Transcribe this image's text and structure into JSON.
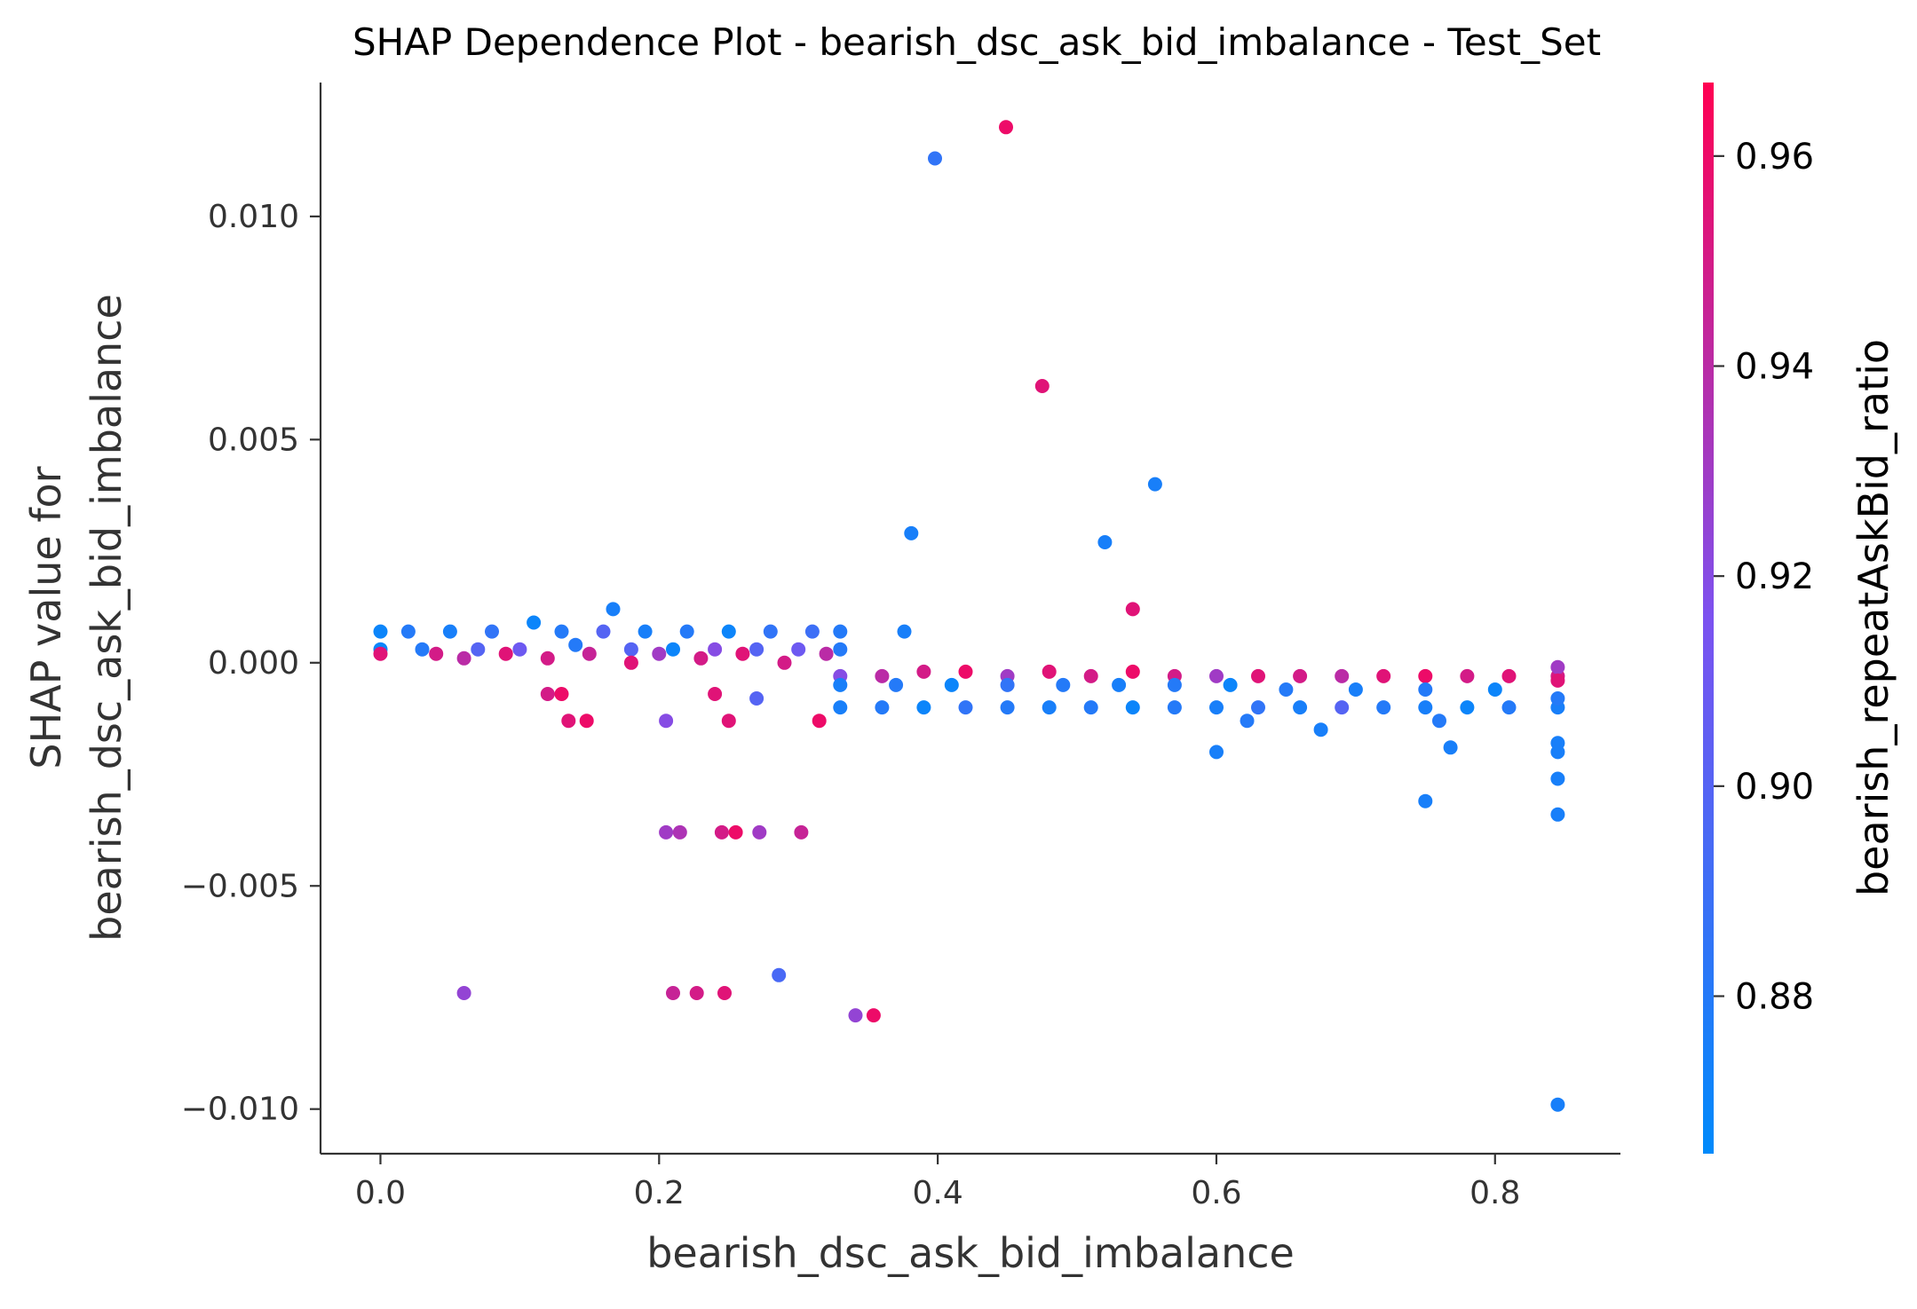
{
  "chart_data": {
    "type": "scatter",
    "title": "SHAP Dependence Plot - bearish_dsc_ask_bid_imbalance - Test_Set",
    "xlabel": "bearish_dsc_ask_bid_imbalance",
    "ylabel": "SHAP value for",
    "ylabel2": "bearish_dsc_ask_bid_imbalance",
    "colorbar_label": "bearish_repeatAskBid_ratio",
    "xlim": [
      -0.043,
      0.89
    ],
    "ylim": [
      -0.011,
      0.013
    ],
    "x_ticks": [
      0.0,
      0.2,
      0.4,
      0.6,
      0.8
    ],
    "x_tick_labels": [
      "0.0",
      "0.2",
      "0.4",
      "0.6",
      "0.8"
    ],
    "y_ticks": [
      0.01,
      0.005,
      0.0,
      -0.005,
      -0.01
    ],
    "y_tick_labels": [
      "0.010",
      "0.005",
      "0.000",
      "−0.005",
      "−0.010"
    ],
    "colorbar_range": [
      0.865,
      0.967
    ],
    "colorbar_ticks": [
      0.96,
      0.94,
      0.92,
      0.9,
      0.88
    ],
    "colorbar_tick_labels": [
      "0.96",
      "0.94",
      "0.92",
      "0.90",
      "0.88"
    ],
    "colormap": {
      "low": "#008afb",
      "mid": "#7c52f0",
      "high": "#ff0052"
    },
    "grid": false,
    "point_color": "by colorbar value",
    "points": [
      [
        0.0,
        0.0007,
        0.87
      ],
      [
        0.02,
        0.0007,
        0.88
      ],
      [
        0.05,
        0.0007,
        0.875
      ],
      [
        0.08,
        0.0007,
        0.885
      ],
      [
        0.11,
        0.0009,
        0.87
      ],
      [
        0.13,
        0.0007,
        0.88
      ],
      [
        0.16,
        0.0007,
        0.9
      ],
      [
        0.19,
        0.0007,
        0.875
      ],
      [
        0.22,
        0.0007,
        0.88
      ],
      [
        0.25,
        0.0007,
        0.87
      ],
      [
        0.28,
        0.0007,
        0.885
      ],
      [
        0.31,
        0.0007,
        0.89
      ],
      [
        0.33,
        0.0007,
        0.88
      ],
      [
        0.167,
        0.0012,
        0.875
      ],
      [
        0.0,
        0.0003,
        0.87
      ],
      [
        0.03,
        0.0003,
        0.88
      ],
      [
        0.07,
        0.0003,
        0.9
      ],
      [
        0.1,
        0.0003,
        0.91
      ],
      [
        0.14,
        0.0004,
        0.88
      ],
      [
        0.18,
        0.0003,
        0.9
      ],
      [
        0.21,
        0.0003,
        0.87
      ],
      [
        0.24,
        0.0003,
        0.92
      ],
      [
        0.27,
        0.0003,
        0.9
      ],
      [
        0.3,
        0.0003,
        0.91
      ],
      [
        0.33,
        0.0003,
        0.88
      ],
      [
        0.0,
        0.0002,
        0.955
      ],
      [
        0.04,
        0.0002,
        0.95
      ],
      [
        0.06,
        0.0001,
        0.94
      ],
      [
        0.09,
        0.0002,
        0.955
      ],
      [
        0.12,
        0.0001,
        0.95
      ],
      [
        0.15,
        0.0002,
        0.945
      ],
      [
        0.18,
        0.0,
        0.955
      ],
      [
        0.2,
        0.0002,
        0.93
      ],
      [
        0.23,
        0.0001,
        0.95
      ],
      [
        0.26,
        0.0002,
        0.955
      ],
      [
        0.29,
        0.0,
        0.95
      ],
      [
        0.32,
        0.0002,
        0.94
      ],
      [
        0.12,
        -0.0007,
        0.95
      ],
      [
        0.13,
        -0.0007,
        0.96
      ],
      [
        0.135,
        -0.0013,
        0.955
      ],
      [
        0.148,
        -0.0013,
        0.96
      ],
      [
        0.205,
        -0.0013,
        0.92
      ],
      [
        0.24,
        -0.0007,
        0.955
      ],
      [
        0.25,
        -0.0013,
        0.955
      ],
      [
        0.27,
        -0.0008,
        0.9
      ],
      [
        0.315,
        -0.0013,
        0.96
      ],
      [
        0.205,
        -0.0038,
        0.93
      ],
      [
        0.215,
        -0.0038,
        0.935
      ],
      [
        0.245,
        -0.0038,
        0.95
      ],
      [
        0.255,
        -0.0038,
        0.96
      ],
      [
        0.272,
        -0.0038,
        0.93
      ],
      [
        0.302,
        -0.0038,
        0.945
      ],
      [
        0.06,
        -0.0074,
        0.925
      ],
      [
        0.21,
        -0.0074,
        0.945
      ],
      [
        0.227,
        -0.0074,
        0.95
      ],
      [
        0.247,
        -0.0074,
        0.955
      ],
      [
        0.286,
        -0.007,
        0.895
      ],
      [
        0.341,
        -0.0079,
        0.925
      ],
      [
        0.354,
        -0.0079,
        0.96
      ],
      [
        0.398,
        0.0113,
        0.885
      ],
      [
        0.449,
        0.012,
        0.96
      ],
      [
        0.475,
        0.0062,
        0.955
      ],
      [
        0.556,
        0.004,
        0.875
      ],
      [
        0.381,
        0.0029,
        0.875
      ],
      [
        0.52,
        0.0027,
        0.875
      ],
      [
        0.54,
        0.0012,
        0.955
      ],
      [
        0.376,
        0.0007,
        0.875
      ],
      [
        0.33,
        -0.0003,
        0.92
      ],
      [
        0.36,
        -0.0003,
        0.94
      ],
      [
        0.39,
        -0.0002,
        0.95
      ],
      [
        0.42,
        -0.0002,
        0.96
      ],
      [
        0.45,
        -0.0003,
        0.93
      ],
      [
        0.48,
        -0.0002,
        0.955
      ],
      [
        0.51,
        -0.0003,
        0.95
      ],
      [
        0.54,
        -0.0002,
        0.96
      ],
      [
        0.57,
        -0.0003,
        0.95
      ],
      [
        0.6,
        -0.0003,
        0.93
      ],
      [
        0.63,
        -0.0003,
        0.955
      ],
      [
        0.66,
        -0.0003,
        0.95
      ],
      [
        0.69,
        -0.0003,
        0.94
      ],
      [
        0.72,
        -0.0003,
        0.955
      ],
      [
        0.75,
        -0.0003,
        0.96
      ],
      [
        0.78,
        -0.0003,
        0.95
      ],
      [
        0.81,
        -0.0003,
        0.955
      ],
      [
        0.845,
        -0.0003,
        0.95
      ],
      [
        0.33,
        -0.0005,
        0.875
      ],
      [
        0.37,
        -0.0005,
        0.88
      ],
      [
        0.41,
        -0.0005,
        0.87
      ],
      [
        0.45,
        -0.0005,
        0.885
      ],
      [
        0.49,
        -0.0005,
        0.88
      ],
      [
        0.53,
        -0.0005,
        0.875
      ],
      [
        0.57,
        -0.0005,
        0.88
      ],
      [
        0.61,
        -0.0005,
        0.87
      ],
      [
        0.65,
        -0.0006,
        0.88
      ],
      [
        0.7,
        -0.0006,
        0.875
      ],
      [
        0.75,
        -0.0006,
        0.88
      ],
      [
        0.8,
        -0.0006,
        0.87
      ],
      [
        0.33,
        -0.001,
        0.875
      ],
      [
        0.36,
        -0.001,
        0.88
      ],
      [
        0.39,
        -0.001,
        0.87
      ],
      [
        0.42,
        -0.001,
        0.885
      ],
      [
        0.45,
        -0.001,
        0.88
      ],
      [
        0.48,
        -0.001,
        0.875
      ],
      [
        0.51,
        -0.001,
        0.88
      ],
      [
        0.54,
        -0.001,
        0.87
      ],
      [
        0.57,
        -0.001,
        0.88
      ],
      [
        0.6,
        -0.001,
        0.875
      ],
      [
        0.63,
        -0.001,
        0.885
      ],
      [
        0.66,
        -0.001,
        0.875
      ],
      [
        0.69,
        -0.001,
        0.9
      ],
      [
        0.72,
        -0.001,
        0.88
      ],
      [
        0.75,
        -0.001,
        0.875
      ],
      [
        0.78,
        -0.001,
        0.87
      ],
      [
        0.81,
        -0.001,
        0.88
      ],
      [
        0.6,
        -0.002,
        0.875
      ],
      [
        0.622,
        -0.0013,
        0.88
      ],
      [
        0.675,
        -0.0015,
        0.875
      ],
      [
        0.76,
        -0.0013,
        0.88
      ],
      [
        0.768,
        -0.0019,
        0.875
      ],
      [
        0.75,
        -0.0031,
        0.875
      ],
      [
        0.845,
        -0.001,
        0.875
      ],
      [
        0.845,
        -0.0008,
        0.88
      ],
      [
        0.845,
        -0.0018,
        0.875
      ],
      [
        0.845,
        -0.002,
        0.875
      ],
      [
        0.845,
        -0.0026,
        0.875
      ],
      [
        0.845,
        -0.0034,
        0.875
      ],
      [
        0.845,
        -0.0099,
        0.875
      ],
      [
        0.845,
        -0.0001,
        0.93
      ],
      [
        0.845,
        -0.0004,
        0.955
      ]
    ]
  }
}
